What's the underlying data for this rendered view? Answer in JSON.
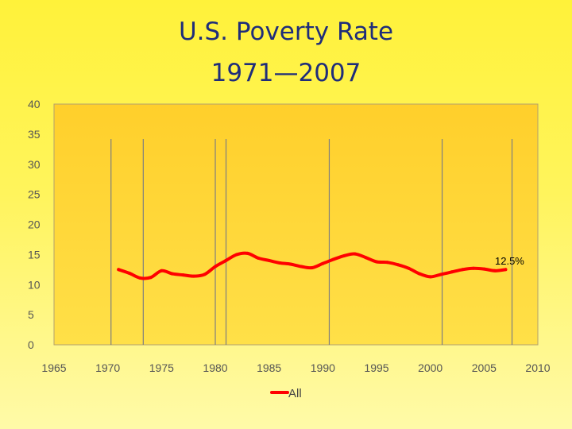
{
  "chart_data": {
    "type": "line",
    "title_line1": "U.S. Poverty Rate",
    "title_line2": "1971—2007",
    "xlim": [
      1965,
      2010
    ],
    "ylim": [
      0,
      40
    ],
    "x_ticks": [
      "1965",
      "1970",
      "1975",
      "1980",
      "1985",
      "1990",
      "1995",
      "2000",
      "2005",
      "2010"
    ],
    "y_ticks": [
      "0",
      "5",
      "10",
      "15",
      "20",
      "25",
      "30",
      "35",
      "40"
    ],
    "vertical_markers": [
      1970.3,
      1973.3,
      1980.0,
      1981.0,
      1990.6,
      2001.1,
      2007.6
    ],
    "series": [
      {
        "name": "All",
        "color": "#ff0000",
        "x": [
          1971,
          1972,
          1973,
          1974,
          1975,
          1976,
          1977,
          1978,
          1979,
          1980,
          1981,
          1982,
          1983,
          1984,
          1985,
          1986,
          1987,
          1988,
          1989,
          1990,
          1991,
          1992,
          1993,
          1994,
          1995,
          1996,
          1997,
          1998,
          1999,
          2000,
          2001,
          2002,
          2003,
          2004,
          2005,
          2006,
          2007
        ],
        "y": [
          12.5,
          11.9,
          11.1,
          11.2,
          12.3,
          11.8,
          11.6,
          11.4,
          11.7,
          13.0,
          14.0,
          15.0,
          15.2,
          14.4,
          14.0,
          13.6,
          13.4,
          13.0,
          12.8,
          13.5,
          14.2,
          14.8,
          15.1,
          14.5,
          13.8,
          13.7,
          13.3,
          12.7,
          11.8,
          11.3,
          11.7,
          12.1,
          12.5,
          12.7,
          12.6,
          12.3,
          12.5
        ]
      }
    ],
    "annotation": "12.5%",
    "legend_position": "bottom",
    "grid": false,
    "background_color": "#ffd633",
    "marker_color": "#7f7f7f"
  }
}
